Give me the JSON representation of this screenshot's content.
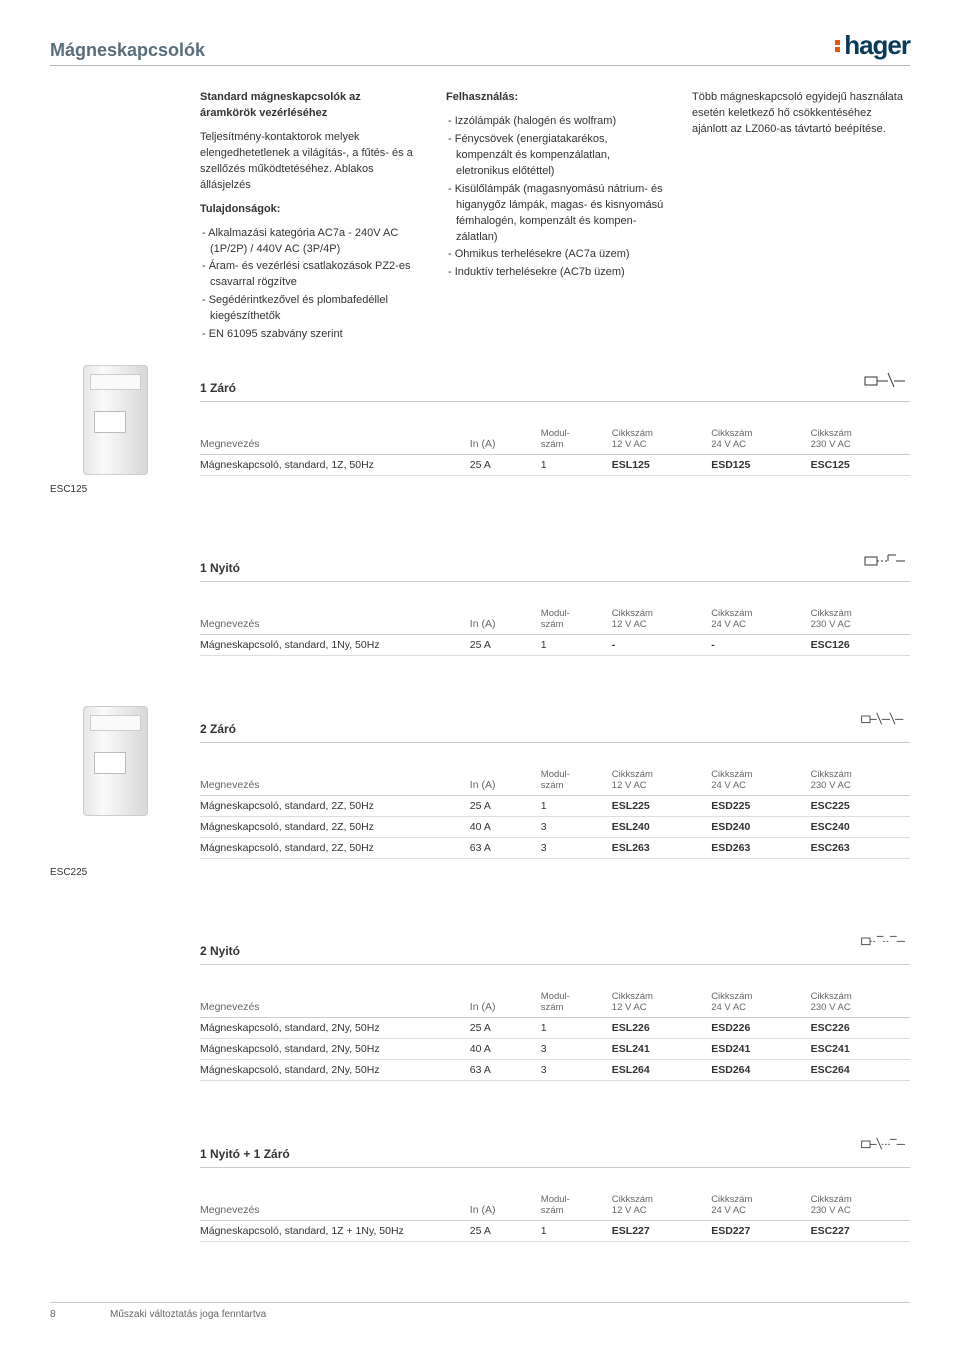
{
  "page_title": "Mágneskapcsolók",
  "logo_text": "hager",
  "logo_dot_color": "#e85412",
  "logo_text_color": "#0a3a5a",
  "intro": {
    "col1": {
      "heading": "Standard mágneskapcsolók az áramkörök vezérléséhez",
      "p1": "Teljesítmény-kontaktorok melyek elengedhetetlenek a világítás-, a fűtés- és a szellőzés működteté­séhez. Ablakos állásjelzés",
      "features_title": "Tulajdonságok:",
      "features": [
        "- Alkalmazási kategória AC7a - 240V AC (1P/2P) / 440V AC (3P/4P)",
        "- Áram- és vezérlési csatlakozá­sok PZ2-es csavarral rögzítve",
        "- Segédérintkezővel és plomba­fedéllel kiegészíthetők",
        "- EN 61095 szabvány szerint"
      ]
    },
    "col2": {
      "heading": "Felhasználás:",
      "items": [
        "- Izzólámpák (halogén és wolf­ram)",
        "- Fénycsövek (energiatakarékos, kompenzált és kompenzálatlan, eletronikus előtéttel)",
        "- Kisülőlámpák (magasnyomású nátrium- és higanygőz lámpák, magas- és kisnyomású fémha­logén, kompenzált és kompen­zálatlan)",
        "- Ohmikus terhelésekre (AC7a üzem)",
        "- Induktív terhelésekre (AC7b üzem)"
      ]
    },
    "col3": {
      "text": "Több mágneskapcsoló egyidejű használata esetén keletkező hő csökkentéséhez ajánlott az LZ060-as távtartó beépítése."
    }
  },
  "table_headers": {
    "name": "Megnevezés",
    "in": "In (A)",
    "modul1": "Modul-",
    "modul2": "szám",
    "cikk": "Cikkszám",
    "v12": "12 V AC",
    "v24": "24 V AC",
    "v230": "230 V AC"
  },
  "sections": [
    {
      "title": "1 Záró",
      "thumb_label": "ESC125",
      "has_thumb": true,
      "schematic": "nc1",
      "rows": [
        {
          "name": "Mágneskapcsoló, standard, 1Z, 50Hz",
          "in": "25 A",
          "modul": "1",
          "c12": "ESL125",
          "c24": "ESD125",
          "c230": "ESC125"
        }
      ]
    },
    {
      "title": "1 Nyitó",
      "has_thumb": false,
      "schematic": "no1",
      "rows": [
        {
          "name": "Mágneskapcsoló, standard, 1Ny, 50Hz",
          "in": "25 A",
          "modul": "1",
          "c12": "-",
          "c24": "-",
          "c230": "ESC126"
        }
      ]
    },
    {
      "title": "2 Záró",
      "thumb_label": "ESC225",
      "has_thumb": true,
      "schematic": "nc2",
      "rows": [
        {
          "name": "Mágneskapcsoló, standard, 2Z, 50Hz",
          "in": "25 A",
          "modul": "1",
          "c12": "ESL225",
          "c24": "ESD225",
          "c230": "ESC225"
        },
        {
          "name": "Mágneskapcsoló, standard, 2Z, 50Hz",
          "in": "40 A",
          "modul": "3",
          "c12": "ESL240",
          "c24": "ESD240",
          "c230": "ESC240"
        },
        {
          "name": "Mágneskapcsoló, standard, 2Z, 50Hz",
          "in": "63 A",
          "modul": "3",
          "c12": "ESL263",
          "c24": "ESD263",
          "c230": "ESC263"
        }
      ]
    },
    {
      "title": "2 Nyitó",
      "has_thumb": false,
      "schematic": "no2",
      "rows": [
        {
          "name": "Mágneskapcsoló, standard, 2Ny, 50Hz",
          "in": "25 A",
          "modul": "1",
          "c12": "ESL226",
          "c24": "ESD226",
          "c230": "ESC226"
        },
        {
          "name": "Mágneskapcsoló, standard, 2Ny, 50Hz",
          "in": "40 A",
          "modul": "3",
          "c12": "ESL241",
          "c24": "ESD241",
          "c230": "ESC241"
        },
        {
          "name": "Mágneskapcsoló, standard, 2Ny, 50Hz",
          "in": "63 A",
          "modul": "3",
          "c12": "ESL264",
          "c24": "ESD264",
          "c230": "ESC264"
        }
      ]
    },
    {
      "title": "1 Nyitó + 1 Záró",
      "has_thumb": false,
      "schematic": "mix",
      "rows": [
        {
          "name": "Mágneskapcsoló, standard, 1Z + 1Ny, 50Hz",
          "in": "25 A",
          "modul": "1",
          "c12": "ESL227",
          "c24": "ESD227",
          "c230": "ESC227"
        }
      ]
    }
  ],
  "footer": {
    "page_number": "8",
    "note": "Műszaki változtatás joga fenntartva"
  }
}
